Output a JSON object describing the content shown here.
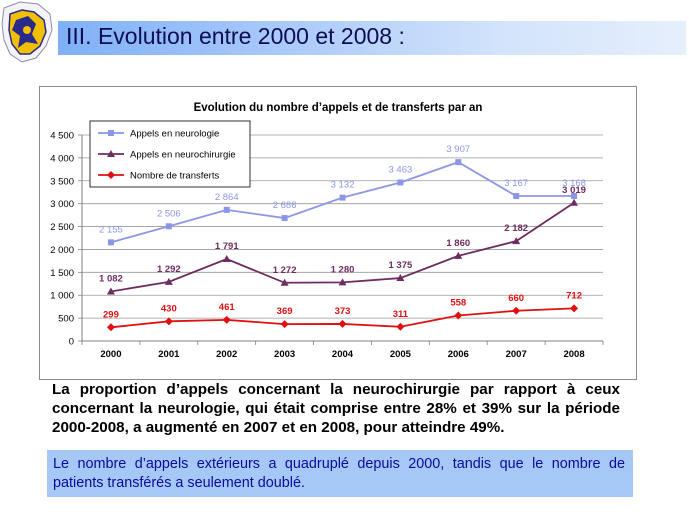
{
  "slide": {
    "title": "III. Evolution entre 2000 et 2008 :",
    "paragraph1": "La proportion d’appels concernant la neurochirurgie par rapport à ceux concernant la neurologie, qui était comprise entre 28% et 39% sur la période 2000-2008, a augmenté en 2007 et en 2008, pour atteindre 49%.",
    "paragraph2": "Le nombre d’appels extérieurs a quadruplé depuis 2000, tandis que le nombre de patients transférés a seulement doublé."
  },
  "logo": {
    "icon": "coat-of-arms-icon"
  },
  "chart_data": {
    "type": "line",
    "title": "Evolution du nombre d’appels et de transferts par an",
    "xlabel": "",
    "ylabel": "",
    "categories": [
      "2000",
      "2001",
      "2002",
      "2003",
      "2004",
      "2005",
      "2006",
      "2007",
      "2008"
    ],
    "ylim": [
      0,
      4500
    ],
    "yticks": [
      0,
      500,
      1000,
      1500,
      2000,
      2500,
      3000,
      3500,
      4000,
      4500
    ],
    "ytick_labels": [
      "0",
      "500",
      "1 000",
      "1 500",
      "2 000",
      "2 500",
      "3 000",
      "3 500",
      "4 000",
      "4 500"
    ],
    "grid": true,
    "legend_position": "top-left",
    "series": [
      {
        "name": "Appels en neurologie",
        "color": "#8c96e6",
        "marker": "square",
        "values": [
          2155,
          2506,
          2864,
          2686,
          3132,
          3463,
          3907,
          3167,
          3168
        ],
        "labels": [
          "2 155",
          "2 506",
          "2 864",
          "2 686",
          "3 132",
          "3 463",
          "3 907",
          "3 167",
          "3 168"
        ]
      },
      {
        "name": "Appels en neurochirurgie",
        "color": "#6e2c60",
        "marker": "triangle",
        "values": [
          1082,
          1292,
          1791,
          1272,
          1280,
          1375,
          1860,
          2182,
          3019
        ],
        "labels": [
          "1 082",
          "1 292",
          "1 791",
          "1 272",
          "1 280",
          "1 375",
          "1 860",
          "2 182",
          "3 019"
        ]
      },
      {
        "name": "Nombre de transferts",
        "color": "#e01010",
        "marker": "diamond",
        "values": [
          299,
          430,
          461,
          369,
          373,
          311,
          558,
          660,
          712
        ],
        "labels": [
          "299",
          "430",
          "461",
          "369",
          "373",
          "311",
          "558",
          "660",
          "712"
        ]
      }
    ]
  }
}
